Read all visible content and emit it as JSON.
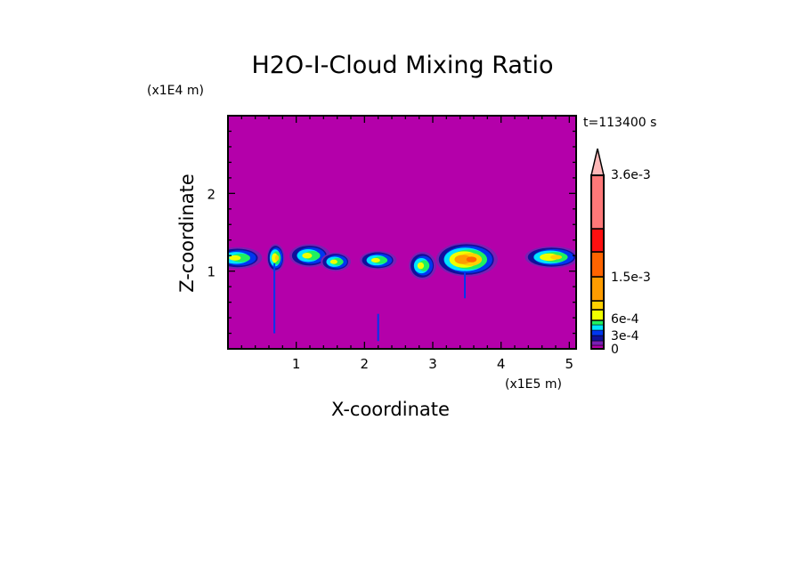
{
  "chart_data": {
    "type": "heatmap",
    "subtype": "filled-contour",
    "title": "H2O-I-Cloud Mixing Ratio",
    "xlabel": "X-coordinate",
    "ylabel": "Z-coordinate",
    "x_unit_label": "(x1E5 m)",
    "y_unit_label": "(x1E4 m)",
    "time_label": "t=113400 s",
    "xlim": [
      0,
      5.1
    ],
    "ylim": [
      0,
      3.0
    ],
    "x_ticks": [
      1,
      2,
      3,
      4,
      5
    ],
    "x_tick_labels": [
      "1",
      "2",
      "3",
      "4",
      "5"
    ],
    "y_ticks": [
      1,
      2
    ],
    "y_tick_labels": [
      "1",
      "2"
    ],
    "background_value": 0,
    "colorbar": {
      "levels": [
        0,
        0.0001,
        0.0002,
        0.0003,
        0.0004,
        0.0005,
        0.0006,
        0.0009,
        0.0012,
        0.0015,
        0.0021,
        0.0027,
        0.0036
      ],
      "colors": [
        "#b400aa",
        "#7a1fb4",
        "#10109a",
        "#0036f0",
        "#00e4ff",
        "#20f060",
        "#f0ff00",
        "#ffd000",
        "#ff9c00",
        "#ff6400",
        "#ff1010",
        "#ff7878",
        "#ffb8b8"
      ],
      "tick_labels": [
        {
          "value": 0,
          "label": "0"
        },
        {
          "value": 0.0003,
          "label": "3e-4"
        },
        {
          "value": 0.0006,
          "label": "6e-4"
        },
        {
          "value": 0.0015,
          "label": "1.5e-3"
        },
        {
          "value": 0.0036,
          "label": "3.6e-3"
        }
      ],
      "extend": "max"
    },
    "cloud_features": [
      {
        "x": 0.15,
        "z": 1.17,
        "dx": 0.35,
        "dz": 0.14,
        "peak_level": 6
      },
      {
        "x": 0.7,
        "z": 1.17,
        "dx": 0.13,
        "dz": 0.18,
        "peak_level": 7
      },
      {
        "x": 1.2,
        "z": 1.2,
        "dx": 0.3,
        "dz": 0.15,
        "peak_level": 6
      },
      {
        "x": 1.58,
        "z": 1.12,
        "dx": 0.22,
        "dz": 0.12,
        "peak_level": 6
      },
      {
        "x": 2.2,
        "z": 1.14,
        "dx": 0.27,
        "dz": 0.12,
        "peak_level": 6
      },
      {
        "x": 2.85,
        "z": 1.07,
        "dx": 0.2,
        "dz": 0.18,
        "peak_level": 6
      },
      {
        "x": 3.5,
        "z": 1.15,
        "dx": 0.45,
        "dz": 0.22,
        "peak_level": 9
      },
      {
        "x": 4.75,
        "z": 1.18,
        "dx": 0.4,
        "dz": 0.14,
        "peak_level": 7
      }
    ],
    "streaks": [
      {
        "x": 0.68,
        "z_top": 1.1,
        "z_bottom": 0.2
      },
      {
        "x": 2.2,
        "z_top": 0.45,
        "z_bottom": 0.1
      },
      {
        "x": 3.47,
        "z_top": 1.0,
        "z_bottom": 0.65
      }
    ]
  }
}
